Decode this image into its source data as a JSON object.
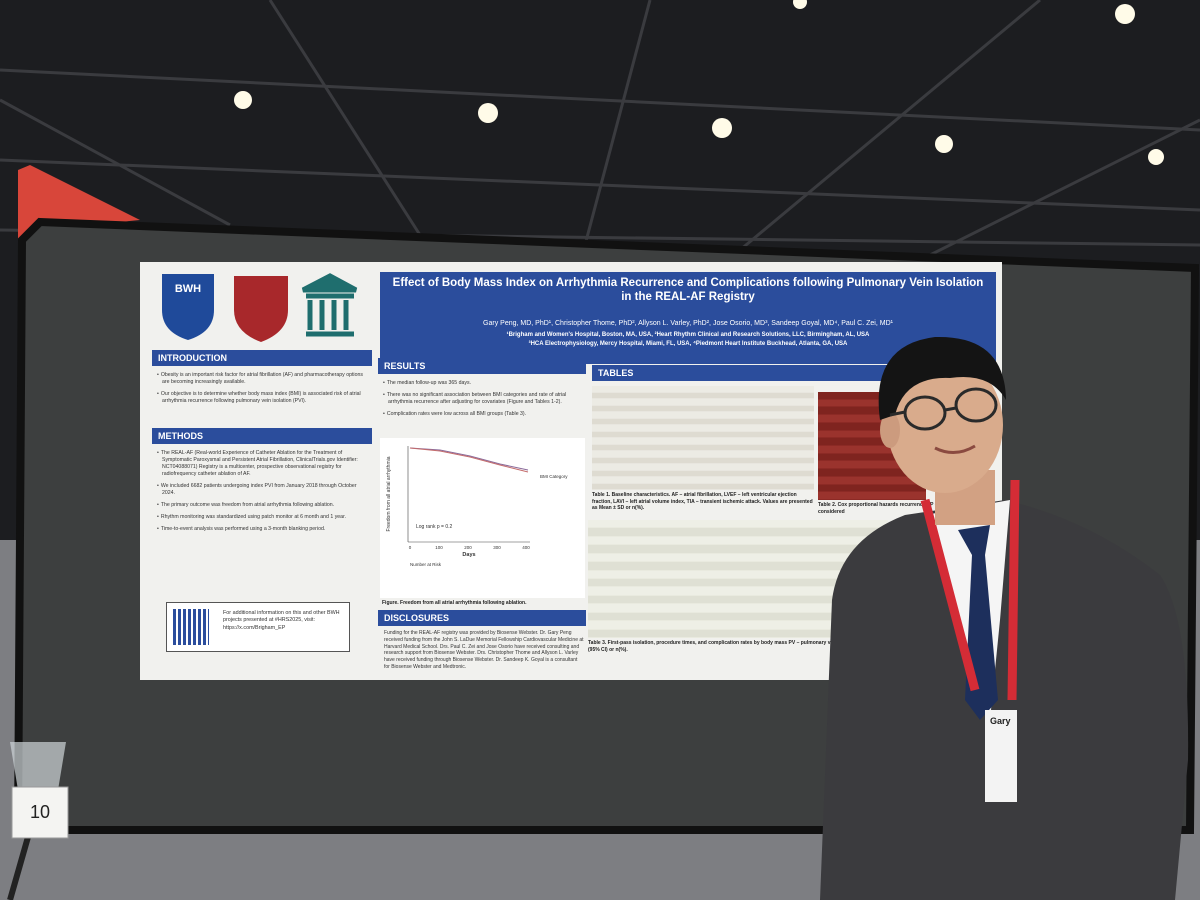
{
  "poster": {
    "logo_text": "BWH",
    "title": "Effect of Body Mass Index on Arrhythmia Recurrence and Complications following Pulmonary Vein Isolation in the REAL-AF Registry",
    "authors": "Gary Peng, MD, PhD¹, Christopher Thome, PhD², Allyson L. Varley, PhD², Jose Osorio, MD³, Sandeep Goyal, MD⁴, Paul C. Zei, MD¹",
    "affiliations": [
      "¹Brigham and Women's Hospital, Boston, MA, USA, ²Heart Rhythm Clinical and Research Solutions, LLC, Birmingham, AL, USA",
      "³HCA Electrophysiology, Mercy Hospital, Miami, FL, USA, ⁴Piedmont Heart Institute Buckhead, Atlanta, GA, USA"
    ],
    "introduction": {
      "heading": "INTRODUCTION",
      "bullets": [
        "Obesity is an important risk factor for atrial fibrillation (AF) and pharmacotherapy options are becoming increasingly available.",
        "Our objective is to determine whether body mass index (BMI) is associated risk of atrial arrhythmia recurrence following pulmonary vein isolation (PVI)."
      ]
    },
    "methods": {
      "heading": "METHODS",
      "bullets": [
        "The REAL-AF (Real-world Experience of Catheter Ablation for the Treatment of Symptomatic Paroxysmal and Persistent Atrial Fibrillation, ClinicalTrials.gov Identifier: NCT04088071) Registry is a multicenter, prospective observational registry for radiofrequency catheter ablation of AF.",
        "We included 6682 patients undergoing index PVI from January 2018 through October 2024.",
        "The primary outcome was freedom from atrial arrhythmia following ablation.",
        "Rhythm monitoring was standardized using patch monitor at 6 month and 1 year.",
        "Time-to-event analysis was performed using a 3-month blanking period."
      ]
    },
    "qr_note": "For additional information on this and other BWH projects presented at #HRS2025, visit: https://x.com/Brigham_EP",
    "results": {
      "heading": "RESULTS",
      "bullets": [
        "The median follow-up was 365 days.",
        "There was no significant association between BMI categories and rate of atrial arrhythmia recurrence after adjusting for covariates (Figure and Tables 1-2).",
        "Complication rates were low across all BMI groups (Table 3)."
      ],
      "figure": {
        "y_label": "Freedom from all atrial arrhythmia",
        "x_label": "Days",
        "x_ticks": [
          "0",
          "100",
          "200",
          "300",
          "400"
        ],
        "annotation": "Log rank p = 0.2",
        "legend_title": "BMI Category",
        "risk_table_title": "Number at Risk",
        "caption": "Figure. Freedom from all atrial arrhythmia following ablation."
      }
    },
    "disclosures": {
      "heading": "DISCLOSURES",
      "text": "Funding for the REAL-AF registry was provided by Biosense Webster. Dr. Gary Peng received funding from the John S. LaDue Memorial Fellowship Cardiovascular Medicine at Harvard Medical School. Drs. Paul C. Zei and Jose Osorio have received consulting and research support from Biosense Webster. Drs. Christopher Thome and Allyson L. Varley have received funding through Biosense Webster. Dr. Sandeep K. Goyal is a consultant for Biosense Webster and Medtronic."
    },
    "tables": {
      "heading": "TABLES",
      "table1_caption": "Table 1. Baseline characteristics. AF – atrial fibrillation, LVEF – left ventricular ejection fraction, LAVI – left atrial volume index, TIA – transient ischemic attack. Values are presented as Mean ± SD or n(%).",
      "table2_caption": "Table 2. Cox proportional hazards recurrence. *P < 0.05 considered",
      "table3_caption": "Table 3. First-pass isolation, procedure times, and complication rates by body mass PV – pulmonary vein, RF – radiofrequency. Values are presented as mean (95% CI) or n(%)."
    }
  },
  "board_number": "10",
  "badge_name": "Gary"
}
